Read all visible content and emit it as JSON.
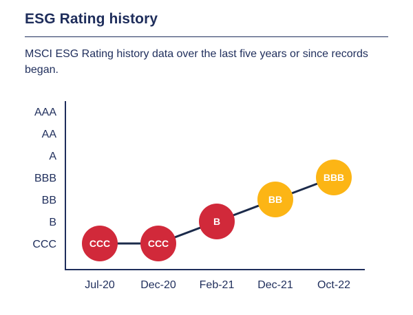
{
  "page": {
    "title": "ESG Rating history",
    "subtitle": "MSCI ESG Rating history data over the last five years or since records began."
  },
  "colors": {
    "navy": "#1e2d5b",
    "line": "#1b2a4a",
    "red": "#d1293a",
    "yellow": "#fcb515",
    "point_text": "#ffffff",
    "divider": "#1e2d5b"
  },
  "chart_data": {
    "type": "line",
    "title": "ESG Rating history",
    "y_axis_labels": [
      "AAA",
      "AA",
      "A",
      "BBB",
      "BB",
      "B",
      "CCC"
    ],
    "x_categories": [
      "Jul-20",
      "Dec-20",
      "Feb-21",
      "Dec-21",
      "Oct-22"
    ],
    "points": [
      {
        "x": "Jul-20",
        "rating": "CCC",
        "color": "#d1293a"
      },
      {
        "x": "Dec-20",
        "rating": "CCC",
        "color": "#d1293a"
      },
      {
        "x": "Feb-21",
        "rating": "B",
        "color": "#d1293a"
      },
      {
        "x": "Dec-21",
        "rating": "BB",
        "color": "#fcb515"
      },
      {
        "x": "Oct-22",
        "rating": "BBB",
        "color": "#fcb515"
      }
    ],
    "grid": false,
    "legend": false
  }
}
